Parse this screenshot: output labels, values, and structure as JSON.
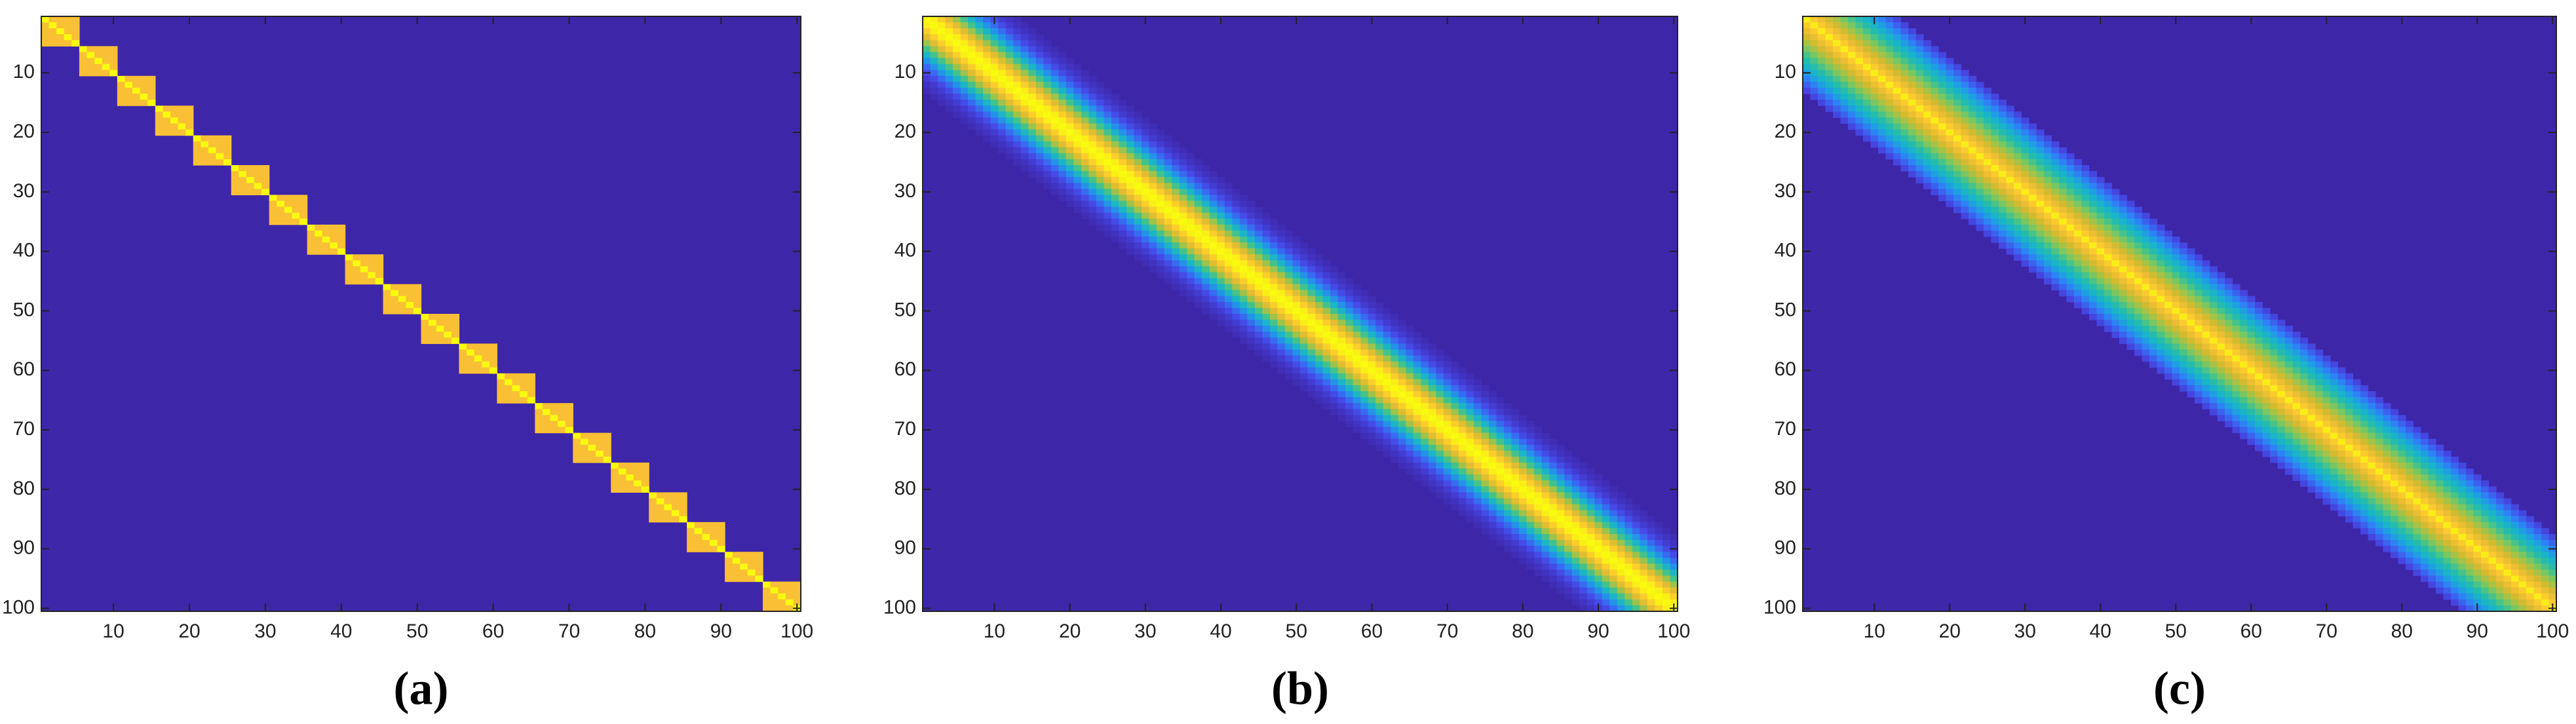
{
  "chart_data": [
    {
      "type": "heatmap",
      "caption": "(a)",
      "xlim": [
        0.5,
        100.5
      ],
      "ylim": [
        0.5,
        100.5
      ],
      "xticks": [
        10,
        20,
        30,
        40,
        50,
        60,
        70,
        80,
        90,
        100
      ],
      "yticks": [
        10,
        20,
        30,
        40,
        50,
        60,
        70,
        80,
        90,
        100
      ]
    },
    {
      "type": "heatmap",
      "caption": "(b)",
      "xlim": [
        0.5,
        100.5
      ],
      "ylim": [
        0.5,
        100.5
      ],
      "xticks": [
        10,
        20,
        30,
        40,
        50,
        60,
        70,
        80,
        90,
        100
      ],
      "yticks": [
        10,
        20,
        30,
        40,
        50,
        60,
        70,
        80,
        90,
        100
      ]
    },
    {
      "type": "heatmap",
      "caption": "(c)",
      "xlim": [
        0.5,
        100.5
      ],
      "ylim": [
        0.5,
        100.5
      ],
      "xticks": [
        10,
        20,
        30,
        40,
        50,
        60,
        70,
        80,
        90,
        100
      ],
      "yticks": [
        10,
        20,
        30,
        40,
        50,
        60,
        70,
        80,
        90,
        100
      ]
    }
  ],
  "colormap": [
    "#3e26a8",
    "#4648e6",
    "#2e81f7",
    "#15b1d3",
    "#2cc0a0",
    "#81c85a",
    "#d1bb2f",
    "#fbc036",
    "#f9fb0e"
  ]
}
